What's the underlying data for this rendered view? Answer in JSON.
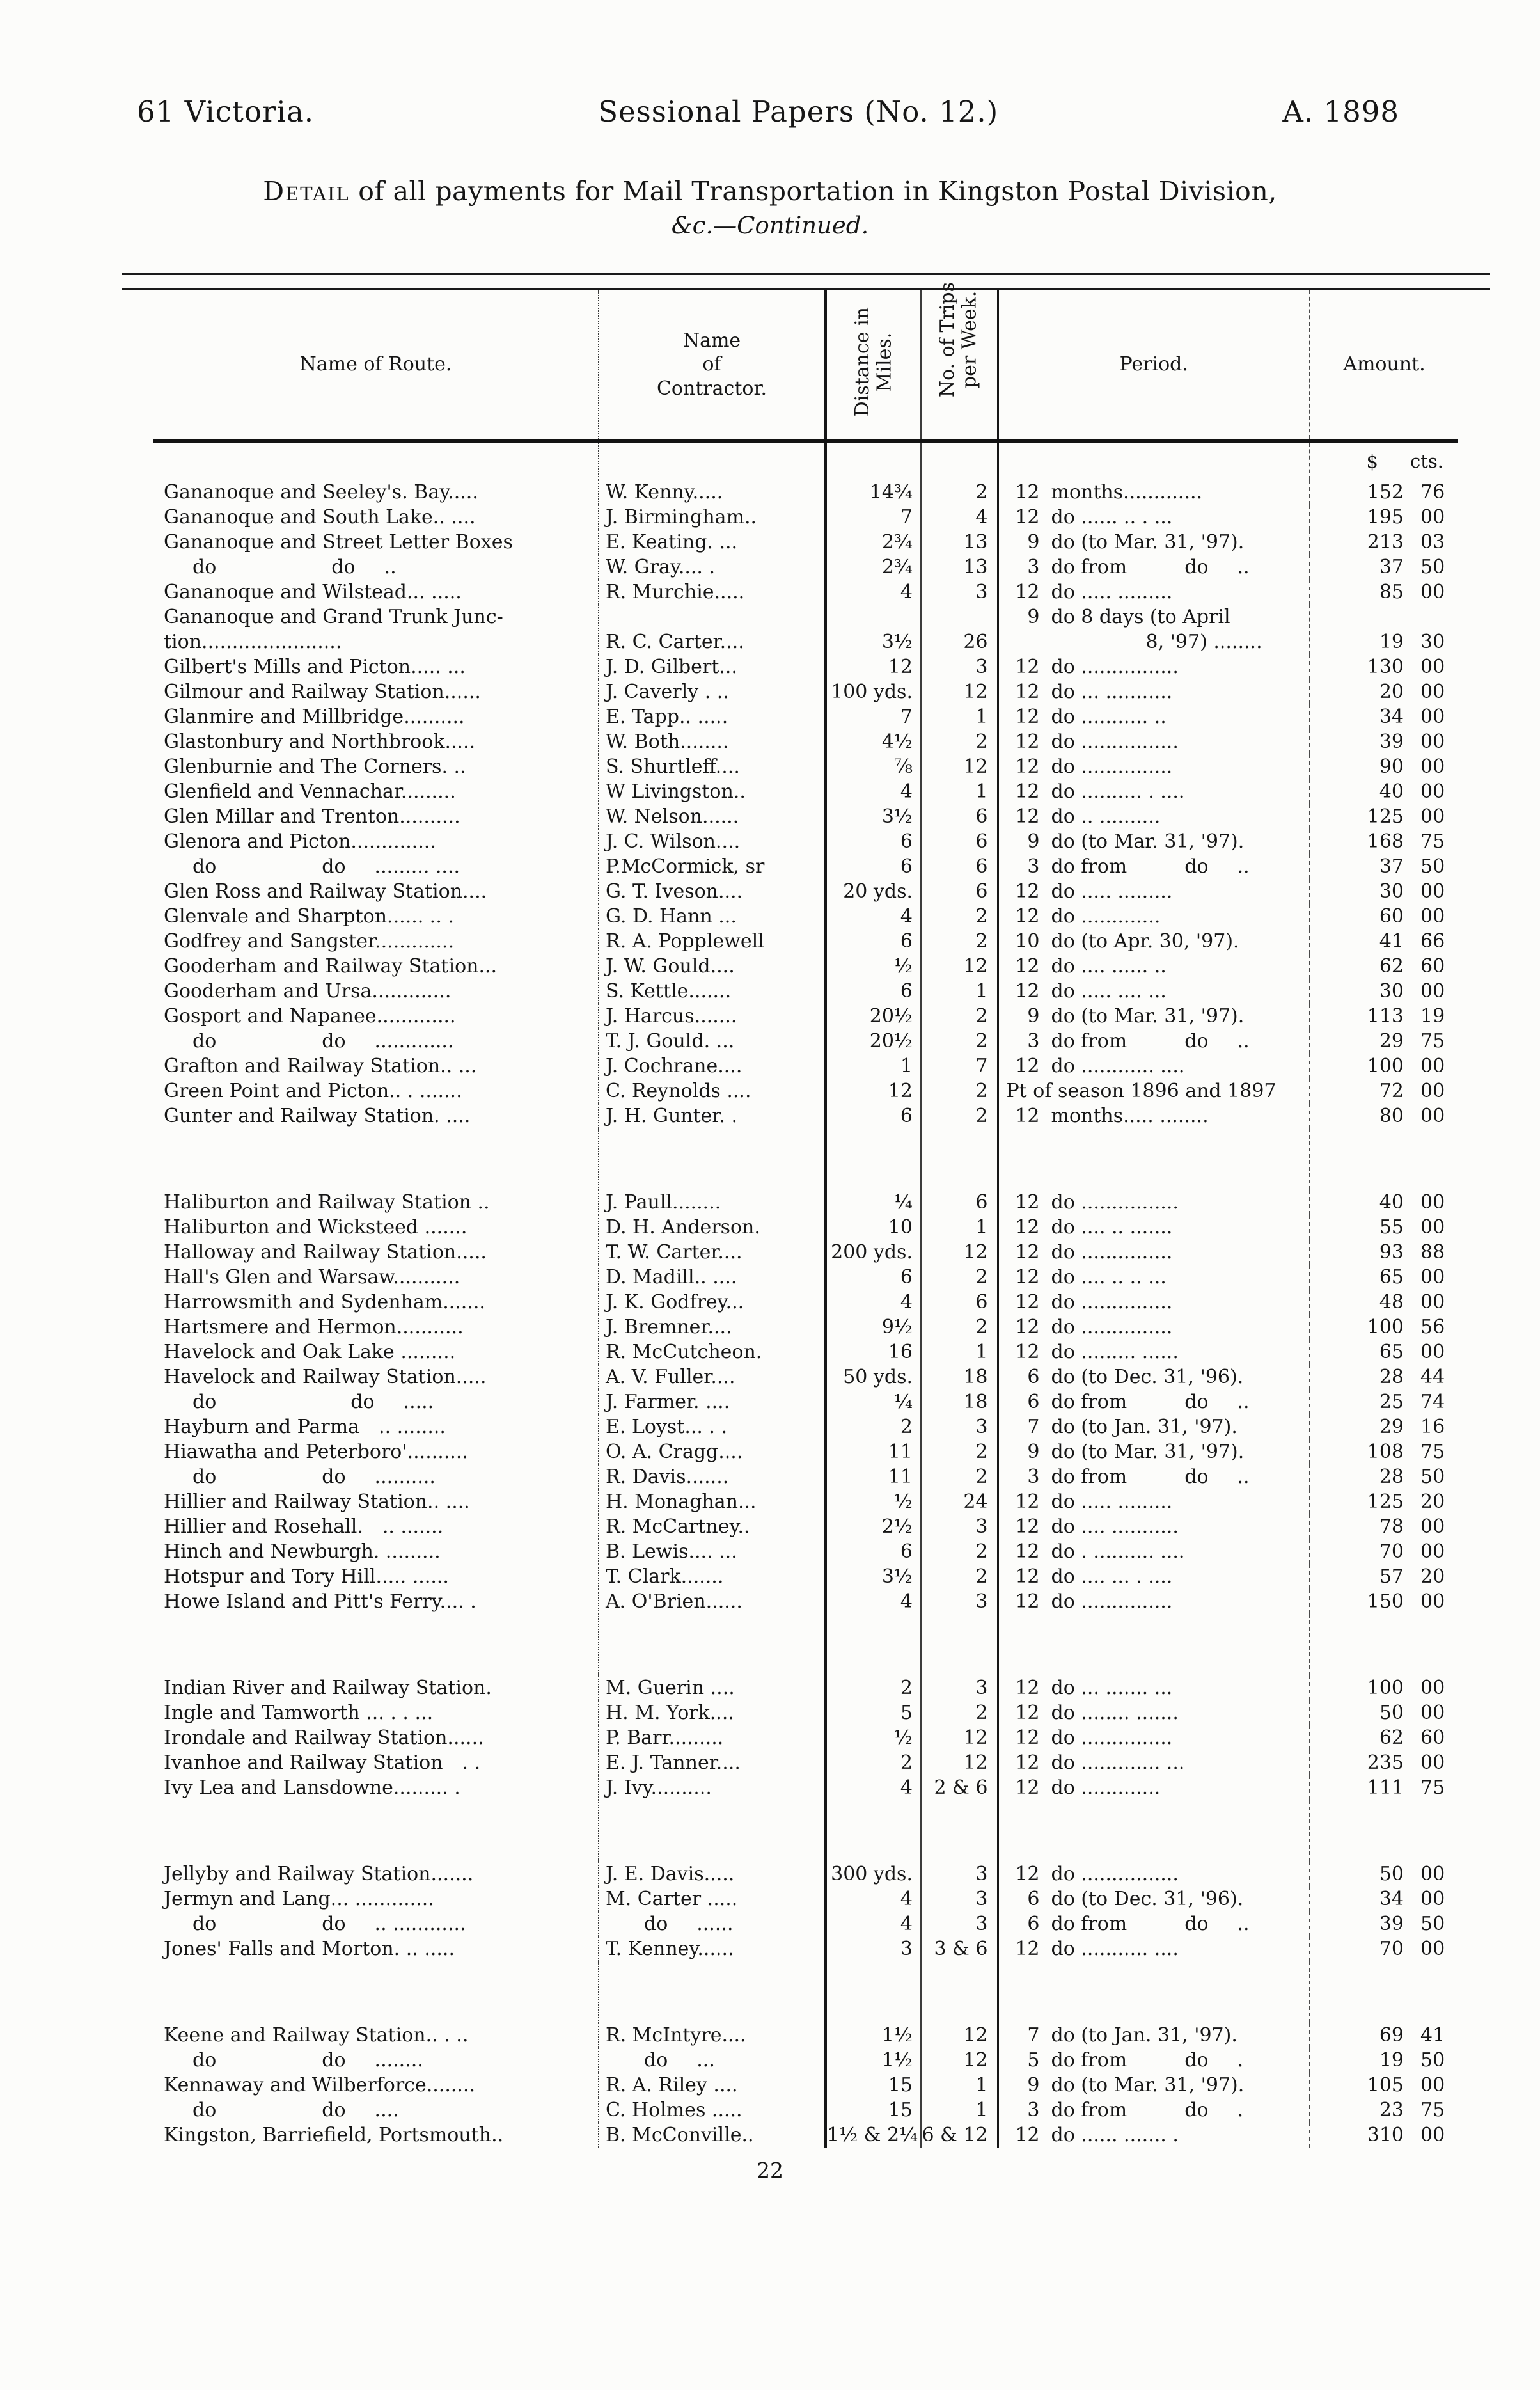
{
  "masthead": {
    "left": "61 Victoria.",
    "center": "Sessional Papers (No. 12.)",
    "right": "A. 1898"
  },
  "title": {
    "lead": "Detail",
    "rest": " of all payments for Mail Transportation in Kingston Postal Division,",
    "continuation": "&c.—Continued."
  },
  "table": {
    "headers": {
      "route": "Name of Route.",
      "contractor_l1": "Name",
      "contractor_l2": "of",
      "contractor_l3": "Contractor.",
      "distance_l1": "Distance in",
      "distance_l2": "Miles.",
      "trips_l1": "No. of Trips",
      "trips_l2": "per Week.",
      "period": "Period.",
      "amount": "Amount.",
      "currency_dollar": "$",
      "currency_cents": "cts."
    },
    "rows": [
      {
        "r": "Gananoque and Seeley's. Bay.....",
        "c": "W. Kenny.....",
        "di": "14¾",
        "t": "2",
        "pn": "12",
        "pt": "months.............",
        "d": "152",
        "ct": "76"
      },
      {
        "r": "Gananoque and South Lake.. ....",
        "c": "J. Birmingham..",
        "di": "7",
        "t": "4",
        "pn": "12",
        "pt": "do ...... .. . ...",
        "d": "195",
        "ct": "00"
      },
      {
        "r": "Gananoque and Street Letter Boxes",
        "c": "E. Keating. ...",
        "di": "2¾",
        "t": "13",
        "pn": "9",
        "pt": "do (to Mar. 31, '97).",
        "d": "213",
        "ct": "03"
      },
      {
        "r": "  do      do  ..",
        "c": "W. Gray.... .",
        "di": "2¾",
        "t": "13",
        "pn": "3",
        "pt": "do from   do  ..",
        "d": "37",
        "ct": "50"
      },
      {
        "r": "Gananoque and Wilstead... .....",
        "c": "R. Murchie.....",
        "di": "4",
        "t": "3",
        "pn": "12",
        "pt": "do ..... .........",
        "d": "85",
        "ct": "00"
      },
      {
        "tall": true,
        "r": "Gananoque and Grand Trunk Junc-",
        "r2": "tion.......................",
        "c": "R. C. Carter....",
        "di": "3½",
        "t": "26",
        "pn": "9",
        "pt": "do 8 days (to April",
        "pt2": "8, '97) ........",
        "d": "19",
        "ct": "30"
      },
      {
        "r": "Gilbert's Mills and Picton..... ...",
        "c": "J. D. Gilbert...",
        "di": "12",
        "t": "3",
        "pn": "12",
        "pt": "do ................",
        "d": "130",
        "ct": "00"
      },
      {
        "r": "Gilmour and Railway Station......",
        "c": "J. Caverly . ..",
        "di": "100 yds.",
        "t": "12",
        "pn": "12",
        "pt": "do ... ...........",
        "d": "20",
        "ct": "00"
      },
      {
        "r": "Glanmire and Millbridge..........",
        "c": "E. Tapp.. .....",
        "di": "7",
        "t": "1",
        "pn": "12",
        "pt": "do ........... ..",
        "d": "34",
        "ct": "00"
      },
      {
        "r": "Glastonbury and Northbrook.....",
        "c": "W. Both........",
        "di": "4½",
        "t": "2",
        "pn": "12",
        "pt": "do ................",
        "d": "39",
        "ct": "00"
      },
      {
        "r": "Glenburnie and The Corners. ..",
        "c": "S. Shurtleff....",
        "di": "⅞",
        "t": "12",
        "pn": "12",
        "pt": "do ...............",
        "d": "90",
        "ct": "00"
      },
      {
        "r": "Glenfield and Vennachar.........",
        "c": "W Livingston..",
        "di": "4",
        "t": "1",
        "pn": "12",
        "pt": "do .......... . ....",
        "d": "40",
        "ct": "00"
      },
      {
        "r": "Glen Millar and Trenton..........",
        "c": "W. Nelson......",
        "di": "3½",
        "t": "6",
        "pn": "12",
        "pt": "do .. ..........",
        "d": "125",
        "ct": "00"
      },
      {
        "r": "Glenora and Picton..............",
        "c": "J. C. Wilson....",
        "di": "6",
        "t": "6",
        "pn": "9",
        "pt": "do (to Mar. 31, '97).",
        "d": "168",
        "ct": "75"
      },
      {
        "r": "  do      do  ......... ....",
        "c": "P.McCormick, sr",
        "di": "6",
        "t": "6",
        "pn": "3",
        "pt": "do from   do  ..",
        "d": "37",
        "ct": "50"
      },
      {
        "r": "Glen Ross and Railway Station....",
        "c": "G. T. Iveson....",
        "di": "20 yds.",
        "t": "6",
        "pn": "12",
        "pt": "do ..... .........",
        "d": "30",
        "ct": "00"
      },
      {
        "r": "Glenvale and Sharpton...... .. .",
        "c": "G. D. Hann ...",
        "di": "4",
        "t": "2",
        "pn": "12",
        "pt": "do .............",
        "d": "60",
        "ct": "00"
      },
      {
        "r": "Godfrey and Sangster.............",
        "c": "R. A. Popplewell",
        "di": "6",
        "t": "2",
        "pn": "10",
        "pt": "do (to Apr. 30, '97).",
        "d": "41",
        "ct": "66"
      },
      {
        "r": "Gooderham and Railway Station...",
        "c": "J. W. Gould....",
        "di": "½",
        "t": "12",
        "pn": "12",
        "pt": "do .... ...... ..",
        "d": "62",
        "ct": "60"
      },
      {
        "r": "Gooderham and Ursa.............",
        "c": "S. Kettle.......",
        "di": "6",
        "t": "1",
        "pn": "12",
        "pt": "do ..... .... ...",
        "d": "30",
        "ct": "00"
      },
      {
        "r": "Gosport and Napanee.............",
        "c": "J. Harcus.......",
        "di": "20½",
        "t": "2",
        "pn": "9",
        "pt": "do (to Mar. 31, '97).",
        "d": "113",
        "ct": "19"
      },
      {
        "r": "  do      do  .............",
        "c": "T. J. Gould. ...",
        "di": "20½",
        "t": "2",
        "pn": "3",
        "pt": "do from   do  ..",
        "d": "29",
        "ct": "75"
      },
      {
        "r": "Grafton and Railway Station.. ...",
        "c": "J. Cochrane....",
        "di": "1",
        "t": "7",
        "pn": "12",
        "pt": "do ............ ....",
        "d": "100",
        "ct": "00"
      },
      {
        "r": "Green Point and Picton.. . .......",
        "c": "C. Reynolds ....",
        "di": "12",
        "t": "2",
        "pn": "",
        "pt": "Pt of season 1896 and 1897",
        "d": "72",
        "ct": "00"
      },
      {
        "r": "Gunter and Railway Station. ....",
        "c": "J. H. Gunter. .",
        "di": "6",
        "t": "2",
        "pn": "12",
        "pt": "months..... ........",
        "d": "80",
        "ct": "00"
      },
      {
        "gap": true
      },
      {
        "r": "Haliburton and Railway Station ..",
        "c": "J. Paull........",
        "di": "¼",
        "t": "6",
        "pn": "12",
        "pt": "do ................",
        "d": "40",
        "ct": "00"
      },
      {
        "r": "Haliburton and Wicksteed .......",
        "c": "D. H. Anderson.",
        "di": "10",
        "t": "1",
        "pn": "12",
        "pt": "do .... .. .......",
        "d": "55",
        "ct": "00"
      },
      {
        "r": "Halloway and Railway Station.....",
        "c": "T. W. Carter....",
        "di": "200 yds.",
        "t": "12",
        "pn": "12",
        "pt": "do ...............",
        "d": "93",
        "ct": "88"
      },
      {
        "r": "Hall's Glen and Warsaw...........",
        "c": "D. Madill.. ....",
        "di": "6",
        "t": "2",
        "pn": "12",
        "pt": "do .... .. .. ...",
        "d": "65",
        "ct": "00"
      },
      {
        "r": "Harrowsmith and Sydenham.......",
        "c": "J. K. Godfrey...",
        "di": "4",
        "t": "6",
        "pn": "12",
        "pt": "do ...............",
        "d": "48",
        "ct": "00"
      },
      {
        "r": "Hartsmere and Hermon...........",
        "c": "J. Bremner....",
        "di": "9½",
        "t": "2",
        "pn": "12",
        "pt": "do ...............",
        "d": "100",
        "ct": "56"
      },
      {
        "r": "Havelock and Oak Lake .........",
        "c": "R. McCutcheon.",
        "di": "16",
        "t": "1",
        "pn": "12",
        "pt": "do ......... ......",
        "d": "65",
        "ct": "00"
      },
      {
        "r": "Havelock and Railway Station.....",
        "c": "A. V. Fuller....",
        "di": "50 yds.",
        "t": "18",
        "pn": "6",
        "pt": "do (to Dec. 31, '96).",
        "d": "28",
        "ct": "44"
      },
      {
        "r": "  do       do  .....",
        "c": "J. Farmer. ....",
        "di": "¼",
        "t": "18",
        "pn": "6",
        "pt": "do from   do  ..",
        "d": "25",
        "ct": "74"
      },
      {
        "r": "Hayburn and Parma .. ........",
        "c": "E. Loyst... . .",
        "di": "2",
        "t": "3",
        "pn": "7",
        "pt": "do (to Jan. 31, '97).",
        "d": "29",
        "ct": "16"
      },
      {
        "r": "Hiawatha and Peterboro'..........",
        "c": "O. A. Cragg....",
        "di": "11",
        "t": "2",
        "pn": "9",
        "pt": "do (to Mar. 31, '97).",
        "d": "108",
        "ct": "75"
      },
      {
        "r": "  do      do  ..........",
        "c": "R. Davis.......",
        "di": "11",
        "t": "2",
        "pn": "3",
        "pt": "do from   do  ..",
        "d": "28",
        "ct": "50"
      },
      {
        "r": "Hillier and Railway Station.. ....",
        "c": "H. Monaghan...",
        "di": "½",
        "t": "24",
        "pn": "12",
        "pt": "do ..... .........",
        "d": "125",
        "ct": "20"
      },
      {
        "r": "Hillier and Rosehall. .. .......",
        "c": "R. McCartney..",
        "di": "2½",
        "t": "3",
        "pn": "12",
        "pt": "do .... ...........",
        "d": "78",
        "ct": "00"
      },
      {
        "r": "Hinch and Newburgh. .........",
        "c": "B. Lewis.... ...",
        "di": "6",
        "t": "2",
        "pn": "12",
        "pt": "do . .......... ....",
        "d": "70",
        "ct": "00"
      },
      {
        "r": "Hotspur and Tory Hill..... ......",
        "c": "T. Clark.......",
        "di": "3½",
        "t": "2",
        "pn": "12",
        "pt": "do .... ... . ....",
        "d": "57",
        "ct": "20"
      },
      {
        "r": "Howe Island and Pitt's Ferry.... .",
        "c": "A. O'Brien......",
        "di": "4",
        "t": "3",
        "pn": "12",
        "pt": "do ...............",
        "d": "150",
        "ct": "00"
      },
      {
        "gap": true
      },
      {
        "r": "Indian River and Railway Station.",
        "c": "M. Guerin ....",
        "di": "2",
        "t": "3",
        "pn": "12",
        "pt": "do ... ....... ...",
        "d": "100",
        "ct": "00"
      },
      {
        "r": "Ingle and Tamworth ... . . ...",
        "c": "H. M. York....",
        "di": "5",
        "t": "2",
        "pn": "12",
        "pt": "do ........ .......",
        "d": "50",
        "ct": "00"
      },
      {
        "r": "Irondale and Railway Station......",
        "c": "P. Barr.........",
        "di": "½",
        "t": "12",
        "pn": "12",
        "pt": "do ...............",
        "d": "62",
        "ct": "60"
      },
      {
        "r": "Ivanhoe and Railway Station . .",
        "c": "E. J. Tanner....",
        "di": "2",
        "t": "12",
        "pn": "12",
        "pt": "do ............. ...",
        "d": "235",
        "ct": "00"
      },
      {
        "r": "Ivy Lea and Lansdowne......... .",
        "c": "J. Ivy..........",
        "di": "4",
        "t": "2 & 6",
        "pn": "12",
        "pt": "do .............",
        "d": "111",
        "ct": "75"
      },
      {
        "gap": true
      },
      {
        "r": "Jellyby and Railway Station.......",
        "c": "J. E. Davis.....",
        "di": "300 yds.",
        "t": "3",
        "pn": "12",
        "pt": "do ................",
        "d": "50",
        "ct": "00"
      },
      {
        "r": "Jermyn and Lang... .............",
        "c": "M. Carter .....",
        "di": "4",
        "t": "3",
        "pn": "6",
        "pt": "do (to Dec. 31, '96).",
        "d": "34",
        "ct": "00"
      },
      {
        "r": "  do      do  .. ............",
        "c": "  do  ......",
        "di": "4",
        "t": "3",
        "pn": "6",
        "pt": "do from   do  ..",
        "d": "39",
        "ct": "50"
      },
      {
        "r": "Jones' Falls and Morton. .. .....",
        "c": "T. Kenney......",
        "di": "3",
        "t": "3 & 6",
        "pn": "12",
        "pt": "do ........... ....",
        "d": "70",
        "ct": "00"
      },
      {
        "gap": true
      },
      {
        "r": "Keene and Railway Station.. . ..",
        "c": "R. McIntyre....",
        "di": "1½",
        "t": "12",
        "pn": "7",
        "pt": "do (to Jan. 31, '97).",
        "d": "69",
        "ct": "41"
      },
      {
        "r": "  do      do  ........",
        "c": "  do  ...",
        "di": "1½",
        "t": "12",
        "pn": "5",
        "pt": "do from   do  .",
        "d": "19",
        "ct": "50"
      },
      {
        "r": "Kennaway and Wilberforce........",
        "c": "R. A. Riley ....",
        "di": "15",
        "t": "1",
        "pn": "9",
        "pt": "do (to Mar. 31, '97).",
        "d": "105",
        "ct": "00"
      },
      {
        "r": "  do      do  ....",
        "c": "C. Holmes .....",
        "di": "15",
        "t": "1",
        "pn": "3",
        "pt": "do from   do  .",
        "d": "23",
        "ct": "75"
      },
      {
        "r": "Kingston, Barriefield, Portsmouth..",
        "c": "B. McConville..",
        "di": "1½ & 2¼",
        "t": "6 & 12",
        "pn": "12",
        "pt": "do ...... ....... .",
        "d": "310",
        "ct": "00"
      }
    ]
  },
  "page_number": "22"
}
